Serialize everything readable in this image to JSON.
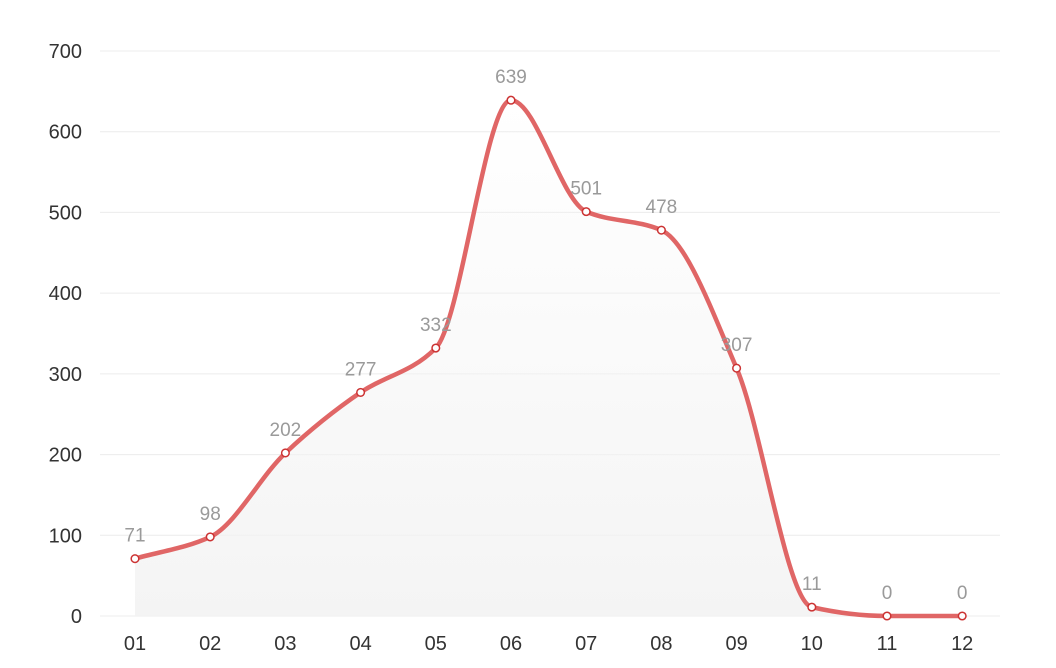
{
  "chart_data": {
    "type": "line",
    "smooth": true,
    "categories": [
      "01",
      "02",
      "03",
      "04",
      "05",
      "06",
      "07",
      "08",
      "09",
      "10",
      "11",
      "12"
    ],
    "series": [
      {
        "values": [
          71,
          98,
          202,
          277,
          332,
          639,
          501,
          478,
          307,
          11,
          0,
          0
        ]
      }
    ],
    "ylim": [
      0,
      700
    ],
    "yticks": [
      0,
      100,
      200,
      300,
      400,
      500,
      600,
      700
    ],
    "grid": true,
    "data_labels": true,
    "line_color": "#e06666",
    "point_fill": "#ffffff",
    "label_color": "#9a9a9a"
  }
}
